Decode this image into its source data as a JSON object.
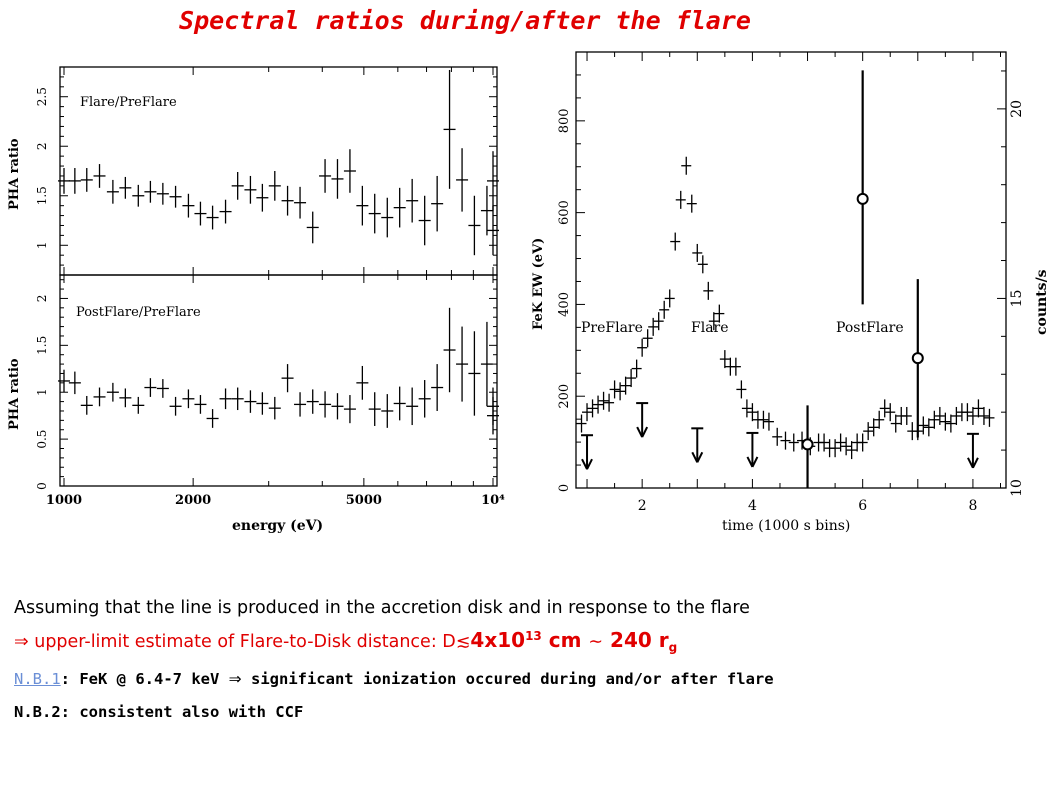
{
  "title": "Spectral ratios during/after the flare",
  "chart_data": [
    {
      "type": "scatter",
      "panel": "top-left",
      "label": "Flare/PreFlare",
      "xlabel": "",
      "ylabel": "PHA ratio",
      "xscale": "log",
      "xlim": [
        1000,
        10000
      ],
      "ylim": [
        0.7,
        2.8
      ],
      "yticks": [
        "1",
        "1.5",
        "2",
        "2.5"
      ],
      "points": [
        {
          "x": 1000,
          "y": 1.65,
          "e": 0.13
        },
        {
          "x": 1060,
          "y": 1.65,
          "e": 0.13
        },
        {
          "x": 1130,
          "y": 1.66,
          "e": 0.12
        },
        {
          "x": 1210,
          "y": 1.7,
          "e": 0.12
        },
        {
          "x": 1300,
          "y": 1.54,
          "e": 0.12
        },
        {
          "x": 1390,
          "y": 1.58,
          "e": 0.11
        },
        {
          "x": 1490,
          "y": 1.5,
          "e": 0.11
        },
        {
          "x": 1590,
          "y": 1.54,
          "e": 0.11
        },
        {
          "x": 1700,
          "y": 1.52,
          "e": 0.11
        },
        {
          "x": 1820,
          "y": 1.49,
          "e": 0.11
        },
        {
          "x": 1950,
          "y": 1.4,
          "e": 0.12
        },
        {
          "x": 2080,
          "y": 1.32,
          "e": 0.12
        },
        {
          "x": 2220,
          "y": 1.28,
          "e": 0.12
        },
        {
          "x": 2380,
          "y": 1.34,
          "e": 0.12
        },
        {
          "x": 2540,
          "y": 1.6,
          "e": 0.14
        },
        {
          "x": 2720,
          "y": 1.56,
          "e": 0.14
        },
        {
          "x": 2900,
          "y": 1.48,
          "e": 0.14
        },
        {
          "x": 3100,
          "y": 1.6,
          "e": 0.15
        },
        {
          "x": 3320,
          "y": 1.45,
          "e": 0.15
        },
        {
          "x": 3550,
          "y": 1.43,
          "e": 0.16
        },
        {
          "x": 3800,
          "y": 1.18,
          "e": 0.16
        },
        {
          "x": 4060,
          "y": 1.7,
          "e": 0.17
        },
        {
          "x": 4340,
          "y": 1.67,
          "e": 0.2
        },
        {
          "x": 4640,
          "y": 1.75,
          "e": 0.22
        },
        {
          "x": 4960,
          "y": 1.4,
          "e": 0.2
        },
        {
          "x": 5300,
          "y": 1.32,
          "e": 0.2
        },
        {
          "x": 5670,
          "y": 1.28,
          "e": 0.2
        },
        {
          "x": 6060,
          "y": 1.38,
          "e": 0.2
        },
        {
          "x": 6480,
          "y": 1.45,
          "e": 0.22
        },
        {
          "x": 6930,
          "y": 1.25,
          "e": 0.25
        },
        {
          "x": 7410,
          "y": 1.42,
          "e": 0.28
        },
        {
          "x": 7920,
          "y": 2.17,
          "e": 0.6
        },
        {
          "x": 8470,
          "y": 1.66,
          "e": 0.32
        },
        {
          "x": 9050,
          "y": 1.2,
          "e": 0.3
        },
        {
          "x": 9680,
          "y": 1.35,
          "e": 0.25
        },
        {
          "x": 10000,
          "y": 1.15,
          "e": 0.25
        },
        {
          "x": 10000,
          "y": 1.65,
          "e": 0.3
        }
      ]
    },
    {
      "type": "scatter",
      "panel": "bottom-left",
      "label": "PostFlare/PreFlare",
      "xlabel": "energy (eV)",
      "ylabel": "PHA ratio",
      "xscale": "log",
      "xlim": [
        1000,
        10000
      ],
      "ylim": [
        0,
        2.25
      ],
      "xticks": [
        "1000",
        "2000",
        "5000",
        "10⁴"
      ],
      "yticks": [
        "0",
        "0.5",
        "1",
        "1.5",
        "2"
      ],
      "points": [
        {
          "x": 1000,
          "y": 1.12,
          "e": 0.12
        },
        {
          "x": 1060,
          "y": 1.1,
          "e": 0.12
        },
        {
          "x": 1130,
          "y": 0.86,
          "e": 0.1
        },
        {
          "x": 1210,
          "y": 0.95,
          "e": 0.1
        },
        {
          "x": 1300,
          "y": 1.0,
          "e": 0.1
        },
        {
          "x": 1390,
          "y": 0.94,
          "e": 0.1
        },
        {
          "x": 1490,
          "y": 0.86,
          "e": 0.09
        },
        {
          "x": 1590,
          "y": 1.05,
          "e": 0.1
        },
        {
          "x": 1700,
          "y": 1.04,
          "e": 0.1
        },
        {
          "x": 1820,
          "y": 0.85,
          "e": 0.1
        },
        {
          "x": 1950,
          "y": 0.93,
          "e": 0.1
        },
        {
          "x": 2080,
          "y": 0.87,
          "e": 0.1
        },
        {
          "x": 2220,
          "y": 0.72,
          "e": 0.1
        },
        {
          "x": 2380,
          "y": 0.93,
          "e": 0.11
        },
        {
          "x": 2540,
          "y": 0.93,
          "e": 0.12
        },
        {
          "x": 2720,
          "y": 0.9,
          "e": 0.12
        },
        {
          "x": 2900,
          "y": 0.88,
          "e": 0.12
        },
        {
          "x": 3100,
          "y": 0.83,
          "e": 0.12
        },
        {
          "x": 3320,
          "y": 1.15,
          "e": 0.15
        },
        {
          "x": 3550,
          "y": 0.87,
          "e": 0.13
        },
        {
          "x": 3800,
          "y": 0.9,
          "e": 0.13
        },
        {
          "x": 4060,
          "y": 0.87,
          "e": 0.14
        },
        {
          "x": 4340,
          "y": 0.85,
          "e": 0.14
        },
        {
          "x": 4640,
          "y": 0.82,
          "e": 0.15
        },
        {
          "x": 4960,
          "y": 1.1,
          "e": 0.18
        },
        {
          "x": 5300,
          "y": 0.82,
          "e": 0.18
        },
        {
          "x": 5670,
          "y": 0.8,
          "e": 0.18
        },
        {
          "x": 6060,
          "y": 0.88,
          "e": 0.18
        },
        {
          "x": 6480,
          "y": 0.85,
          "e": 0.2
        },
        {
          "x": 6930,
          "y": 0.93,
          "e": 0.2
        },
        {
          "x": 7410,
          "y": 1.05,
          "e": 0.25
        },
        {
          "x": 7920,
          "y": 1.45,
          "e": 0.45
        },
        {
          "x": 8470,
          "y": 1.3,
          "e": 0.4
        },
        {
          "x": 9050,
          "y": 1.2,
          "e": 0.45
        },
        {
          "x": 9680,
          "y": 1.3,
          "e": 0.45
        },
        {
          "x": 10000,
          "y": 0.75,
          "e": 0.2
        },
        {
          "x": 10000,
          "y": 0.85,
          "e": 0.2
        }
      ]
    },
    {
      "type": "scatter",
      "panel": "right",
      "xlabel": "time (1000 s bins)",
      "ylabel": "FeK EW (eV)",
      "ylabel_right": "counts/s",
      "xlim": [
        0.8,
        8.6
      ],
      "ylim": [
        0,
        950
      ],
      "ylim_right": [
        10,
        21.5
      ],
      "xticks": [
        "2",
        "4",
        "6",
        "8"
      ],
      "yticks": [
        "0",
        "200",
        "400",
        "600",
        "800"
      ],
      "yticks_right": [
        "10",
        "15",
        "20"
      ],
      "annotations": [
        "PreFlare",
        "Flare",
        "PostFlare"
      ],
      "countrate": [
        {
          "x": 0.9,
          "y": 11.7
        },
        {
          "x": 1.0,
          "y": 12.0
        },
        {
          "x": 1.1,
          "y": 12.1
        },
        {
          "x": 1.2,
          "y": 12.2
        },
        {
          "x": 1.3,
          "y": 12.3
        },
        {
          "x": 1.4,
          "y": 12.25
        },
        {
          "x": 1.5,
          "y": 12.6
        },
        {
          "x": 1.6,
          "y": 12.55
        },
        {
          "x": 1.7,
          "y": 12.7
        },
        {
          "x": 1.8,
          "y": 12.9
        },
        {
          "x": 1.9,
          "y": 13.15
        },
        {
          "x": 2.0,
          "y": 13.7
        },
        {
          "x": 2.1,
          "y": 13.95
        },
        {
          "x": 2.2,
          "y": 14.25
        },
        {
          "x": 2.3,
          "y": 14.4
        },
        {
          "x": 2.4,
          "y": 14.7
        },
        {
          "x": 2.5,
          "y": 15.0
        },
        {
          "x": 2.6,
          "y": 16.5
        },
        {
          "x": 2.7,
          "y": 17.6
        },
        {
          "x": 2.8,
          "y": 18.5
        },
        {
          "x": 2.9,
          "y": 17.5
        },
        {
          "x": 3.0,
          "y": 16.2
        },
        {
          "x": 3.1,
          "y": 15.9
        },
        {
          "x": 3.2,
          "y": 15.2
        },
        {
          "x": 3.3,
          "y": 14.4
        },
        {
          "x": 3.4,
          "y": 14.6
        },
        {
          "x": 3.5,
          "y": 13.4
        },
        {
          "x": 3.6,
          "y": 13.2
        },
        {
          "x": 3.7,
          "y": 13.2
        },
        {
          "x": 3.8,
          "y": 12.6
        },
        {
          "x": 3.9,
          "y": 12.1
        },
        {
          "x": 4.0,
          "y": 12.0
        },
        {
          "x": 4.1,
          "y": 11.8
        },
        {
          "x": 4.2,
          "y": 11.8
        },
        {
          "x": 4.3,
          "y": 11.75
        },
        {
          "x": 4.45,
          "y": 11.35
        },
        {
          "x": 4.6,
          "y": 11.25
        },
        {
          "x": 4.75,
          "y": 11.2
        },
        {
          "x": 4.9,
          "y": 11.25
        },
        {
          "x": 5.05,
          "y": 11.1
        },
        {
          "x": 5.2,
          "y": 11.2
        },
        {
          "x": 5.3,
          "y": 11.2
        },
        {
          "x": 5.4,
          "y": 11.05
        },
        {
          "x": 5.5,
          "y": 11.05
        },
        {
          "x": 5.6,
          "y": 11.2
        },
        {
          "x": 5.7,
          "y": 11.1
        },
        {
          "x": 5.8,
          "y": 11.0
        },
        {
          "x": 5.9,
          "y": 11.2
        },
        {
          "x": 6.0,
          "y": 11.2
        },
        {
          "x": 6.1,
          "y": 11.5
        },
        {
          "x": 6.2,
          "y": 11.6
        },
        {
          "x": 6.3,
          "y": 11.8
        },
        {
          "x": 6.4,
          "y": 12.1
        },
        {
          "x": 6.5,
          "y": 12.0
        },
        {
          "x": 6.6,
          "y": 11.7
        },
        {
          "x": 6.7,
          "y": 11.9
        },
        {
          "x": 6.8,
          "y": 11.9
        },
        {
          "x": 6.9,
          "y": 11.5
        },
        {
          "x": 7.0,
          "y": 11.5
        },
        {
          "x": 7.1,
          "y": 11.65
        },
        {
          "x": 7.2,
          "y": 11.6
        },
        {
          "x": 7.3,
          "y": 11.8
        },
        {
          "x": 7.4,
          "y": 11.9
        },
        {
          "x": 7.5,
          "y": 11.75
        },
        {
          "x": 7.6,
          "y": 11.7
        },
        {
          "x": 7.7,
          "y": 11.9
        },
        {
          "x": 7.8,
          "y": 12.0
        },
        {
          "x": 7.9,
          "y": 12.0
        },
        {
          "x": 8.0,
          "y": 11.9
        },
        {
          "x": 8.1,
          "y": 12.1
        },
        {
          "x": 8.2,
          "y": 11.9
        },
        {
          "x": 8.3,
          "y": 11.85
        }
      ],
      "upper_limits": [
        {
          "x": 1.0,
          "y": 115
        },
        {
          "x": 2.0,
          "y": 185
        },
        {
          "x": 3.0,
          "y": 130
        },
        {
          "x": 4.0,
          "y": 120
        },
        {
          "x": 8.0,
          "y": 118
        }
      ],
      "detections": [
        {
          "x": 5.0,
          "y": 95,
          "lo": 0,
          "hi": 180
        },
        {
          "x": 6.0,
          "y": 630,
          "lo": 400,
          "hi": 910
        },
        {
          "x": 7.0,
          "y": 283,
          "lo": 110,
          "hi": 455
        }
      ]
    }
  ],
  "text": {
    "line1": "Assuming that the line is produced in the accretion disk and in response to the flare",
    "line2_arrow": "⇒",
    "line2_a": " upper-limit estimate of Flare-to-Disk distance: D",
    "line2_leq": "≲",
    "line2_b": "4x10",
    "line2_exp": "13",
    "line2_c": " cm ",
    "line2_sim": "∼",
    "line2_d": " 240 r",
    "line2_sub": "g",
    "line3_link": "N.B.1",
    "line3_a": ": FeK @ 6.4-7 keV ",
    "line3_arrow": "⇒",
    "line3_b": "  significant ionization occured during and/or after flare",
    "line4": "N.B.2: consistent also with CCF"
  }
}
